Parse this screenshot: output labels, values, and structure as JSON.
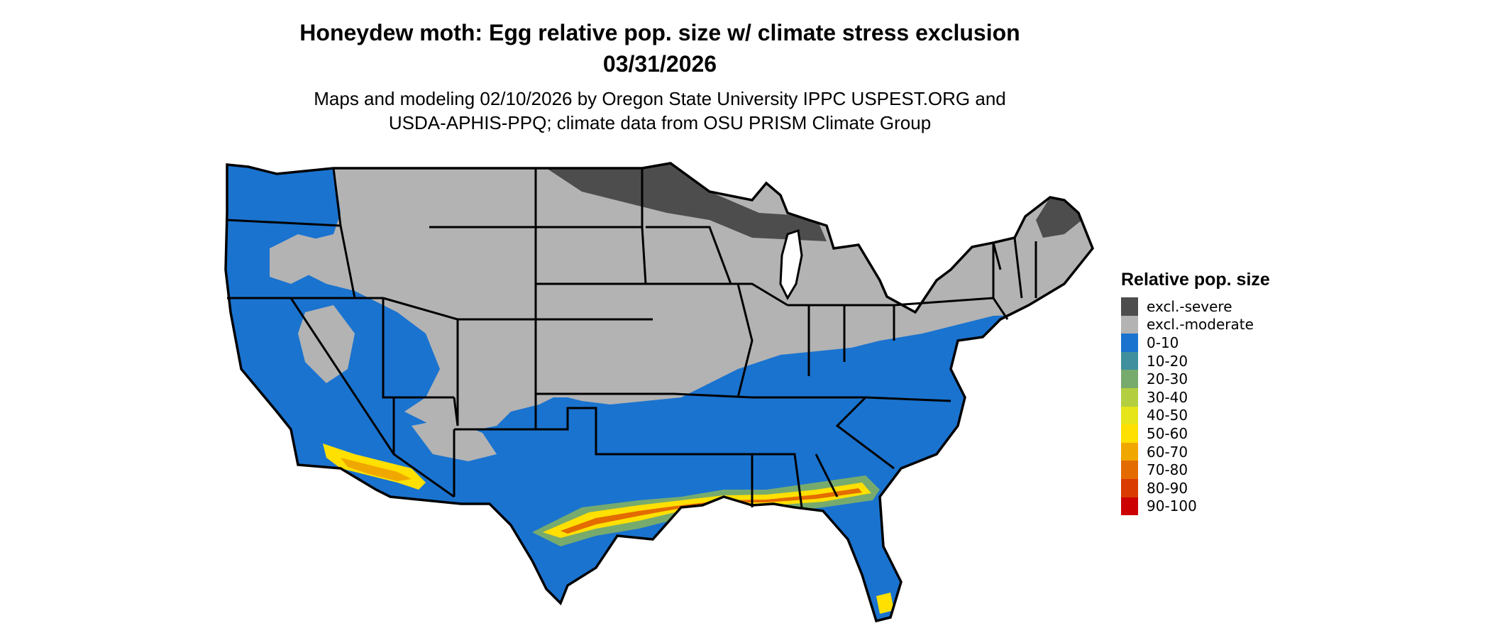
{
  "title_line1": "Honeydew moth: Egg relative pop. size w/ climate stress exclusion",
  "title_line2": "03/31/2026",
  "subtitle_line1": "Maps and modeling 02/10/2026 by Oregon State University IPPC USPEST.ORG and",
  "subtitle_line2": "USDA-APHIS-PPQ; climate data from OSU PRISM Climate Group",
  "legend": {
    "title": "Relative pop. size",
    "items": [
      {
        "label": "excl.-severe",
        "color": "#4d4d4d"
      },
      {
        "label": "excl.-moderate",
        "color": "#b3b3b3"
      },
      {
        "label": "0-10",
        "color": "#1a73cf"
      },
      {
        "label": "10-20",
        "color": "#3f8f9e"
      },
      {
        "label": "20-30",
        "color": "#77ab6e"
      },
      {
        "label": "30-40",
        "color": "#b3cf3f"
      },
      {
        "label": "40-50",
        "color": "#e5e51a"
      },
      {
        "label": "50-60",
        "color": "#ffe000"
      },
      {
        "label": "60-70",
        "color": "#f0a800"
      },
      {
        "label": "70-80",
        "color": "#e36b00"
      },
      {
        "label": "80-90",
        "color": "#d93b00"
      },
      {
        "label": "90-100",
        "color": "#cc0000"
      }
    ]
  }
}
